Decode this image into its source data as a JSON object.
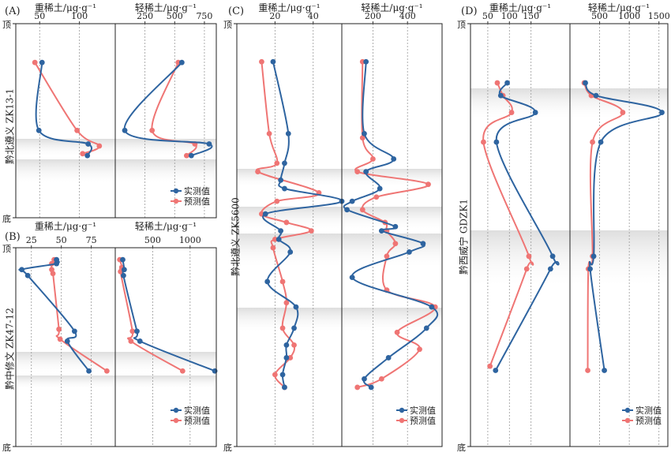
{
  "chart_data": [
    {
      "panel": "(A)",
      "type": "line",
      "well": "黔北遵义 ZK13-1",
      "top_label": "顶",
      "bottom_label": "底",
      "legend": [
        "实测值",
        "预测值"
      ],
      "series_names": [
        "实测值",
        "预测值"
      ],
      "heavy": {
        "xlabel": "重稀土/μg·g⁻¹",
        "ticks": [
          50,
          100
        ],
        "xlim": [
          20,
          145
        ],
        "measured": [
          [
            53,
            0.2
          ],
          [
            49,
            0.55
          ],
          [
            111,
            0.62
          ],
          [
            110,
            0.68
          ]
        ],
        "predicted": [
          [
            44,
            0.2
          ],
          [
            97,
            0.55
          ],
          [
            125,
            0.63
          ],
          [
            104,
            0.67
          ]
        ]
      },
      "light": {
        "xlabel": "轻稀土/μg·g⁻¹",
        "ticks": [
          250,
          500,
          750
        ],
        "xlim": [
          0,
          850
        ],
        "measured": [
          [
            560,
            0.2
          ],
          [
            80,
            0.55
          ],
          [
            790,
            0.62
          ],
          [
            640,
            0.68
          ]
        ],
        "predicted": [
          [
            530,
            0.2
          ],
          [
            310,
            0.55
          ],
          [
            670,
            0.62
          ],
          [
            600,
            0.68
          ]
        ]
      }
    },
    {
      "panel": "(B)",
      "type": "line",
      "well": "黔中修文 ZK47-12",
      "top_label": "顶",
      "bottom_label": "底",
      "legend": [
        "实测值",
        "预测值"
      ],
      "series_names": [
        "实测值",
        "预测值"
      ],
      "heavy": {
        "xlabel": "重稀土/μg·g⁻¹",
        "ticks": [
          25,
          50,
          75
        ],
        "xlim": [
          12,
          95
        ],
        "measured": [
          [
            46,
            0.06
          ],
          [
            46,
            0.08
          ],
          [
            17,
            0.11
          ],
          [
            22,
            0.14
          ],
          [
            61,
            0.42
          ],
          [
            55,
            0.47
          ],
          [
            73,
            0.62
          ]
        ],
        "predicted": [
          [
            44,
            0.06
          ],
          [
            42,
            0.08
          ],
          [
            42,
            0.11
          ],
          [
            43,
            0.13
          ],
          [
            48,
            0.41
          ],
          [
            49,
            0.46
          ],
          [
            88,
            0.62
          ]
        ]
      },
      "light": {
        "xlabel": "轻稀土/μg·g⁻¹",
        "ticks": [
          500,
          1000
        ],
        "xlim": [
          0,
          1350
        ],
        "measured": [
          [
            100,
            0.06
          ],
          [
            120,
            0.11
          ],
          [
            110,
            0.14
          ],
          [
            290,
            0.42
          ],
          [
            330,
            0.47
          ],
          [
            1330,
            0.62
          ]
        ],
        "predicted": [
          [
            60,
            0.06
          ],
          [
            90,
            0.1
          ],
          [
            70,
            0.12
          ],
          [
            230,
            0.42
          ],
          [
            210,
            0.47
          ],
          [
            900,
            0.62
          ]
        ]
      }
    },
    {
      "panel": "(C)",
      "type": "line",
      "well": "黔北遵义 ZK5600",
      "top_label": "顶",
      "bottom_label": "底",
      "legend": [
        "实测值",
        "预测值"
      ],
      "series_names": [
        "实测值",
        "预测值"
      ],
      "heavy": {
        "xlabel": "重稀土/μg·g⁻¹",
        "ticks": [
          20,
          40
        ],
        "xlim": [
          0,
          55
        ],
        "measured": [
          [
            19,
            0.09
          ],
          [
            27,
            0.26
          ],
          [
            25,
            0.33
          ],
          [
            23,
            0.37
          ],
          [
            25,
            0.39
          ],
          [
            55,
            0.42
          ],
          [
            15,
            0.45
          ],
          [
            23,
            0.49
          ],
          [
            22,
            0.51
          ],
          [
            28,
            0.54
          ],
          [
            16,
            0.61
          ],
          [
            31,
            0.67
          ],
          [
            30,
            0.72
          ],
          [
            26,
            0.76
          ],
          [
            26,
            0.79
          ],
          [
            24,
            0.83
          ],
          [
            25,
            0.86
          ]
        ],
        "predicted": [
          [
            13,
            0.09
          ],
          [
            17,
            0.26
          ],
          [
            21,
            0.33
          ],
          [
            11,
            0.35
          ],
          [
            43,
            0.4
          ],
          [
            21,
            0.42
          ],
          [
            13,
            0.45
          ],
          [
            26,
            0.47
          ],
          [
            39,
            0.49
          ],
          [
            20,
            0.51
          ],
          [
            19,
            0.53
          ],
          [
            24,
            0.61
          ],
          [
            26,
            0.66
          ],
          [
            24,
            0.72
          ],
          [
            30,
            0.76
          ],
          [
            28,
            0.79
          ],
          [
            20,
            0.83
          ],
          [
            25,
            0.86
          ]
        ]
      },
      "light": {
        "xlabel": "轻稀土/μg·g⁻¹",
        "ticks": [
          200,
          400
        ],
        "xlim": [
          20,
          600
        ],
        "measured": [
          [
            160,
            0.09
          ],
          [
            150,
            0.26
          ],
          [
            320,
            0.32
          ],
          [
            160,
            0.35
          ],
          [
            240,
            0.39
          ],
          [
            80,
            0.42
          ],
          [
            50,
            0.44
          ],
          [
            330,
            0.48
          ],
          [
            250,
            0.49
          ],
          [
            490,
            0.52
          ],
          [
            410,
            0.54
          ],
          [
            80,
            0.6
          ],
          [
            540,
            0.67
          ],
          [
            510,
            0.72
          ],
          [
            290,
            0.79
          ],
          [
            150,
            0.84
          ],
          [
            190,
            0.86
          ]
        ],
        "predicted": [
          [
            140,
            0.09
          ],
          [
            140,
            0.27
          ],
          [
            200,
            0.32
          ],
          [
            110,
            0.35
          ],
          [
            520,
            0.38
          ],
          [
            220,
            0.41
          ],
          [
            140,
            0.44
          ],
          [
            270,
            0.47
          ],
          [
            280,
            0.49
          ],
          [
            330,
            0.52
          ],
          [
            280,
            0.55
          ],
          [
            280,
            0.63
          ],
          [
            560,
            0.67
          ],
          [
            340,
            0.73
          ],
          [
            470,
            0.77
          ],
          [
            250,
            0.84
          ],
          [
            110,
            0.86
          ]
        ]
      }
    },
    {
      "panel": "(D)",
      "type": "line",
      "well": "黔西威宁 GDZK1",
      "top_label": "顶",
      "bottom_label": "底",
      "legend": [
        "实测值",
        "预测值"
      ],
      "series_names": [
        "实测值",
        "预测值"
      ],
      "heavy": {
        "xlabel": "重稀土/μg·g⁻¹",
        "ticks": [
          50,
          100,
          150
        ],
        "xlim": [
          10,
          240
        ],
        "measured": [
          [
            95,
            0.14
          ],
          [
            80,
            0.17
          ],
          [
            160,
            0.21
          ],
          [
            70,
            0.28
          ],
          [
            200,
            0.55
          ],
          [
            195,
            0.58
          ],
          [
            68,
            0.82
          ]
        ],
        "predicted": [
          [
            72,
            0.14
          ],
          [
            85,
            0.17
          ],
          [
            105,
            0.21
          ],
          [
            40,
            0.28
          ],
          [
            145,
            0.55
          ],
          [
            140,
            0.58
          ],
          [
            55,
            0.81
          ]
        ]
      },
      "light": {
        "xlabel": "轻稀土/μg·g⁻¹",
        "ticks": [
          500,
          1000,
          1500
        ],
        "xlim": [
          0,
          1650
        ],
        "measured": [
          [
            260,
            0.14
          ],
          [
            440,
            0.17
          ],
          [
            1550,
            0.21
          ],
          [
            520,
            0.28
          ],
          [
            400,
            0.55
          ],
          [
            340,
            0.58
          ],
          [
            580,
            0.82
          ]
        ],
        "predicted": [
          [
            240,
            0.14
          ],
          [
            360,
            0.17
          ],
          [
            890,
            0.21
          ],
          [
            380,
            0.28
          ],
          [
            380,
            0.55
          ],
          [
            310,
            0.58
          ],
          [
            300,
            0.82
          ]
        ]
      }
    }
  ]
}
